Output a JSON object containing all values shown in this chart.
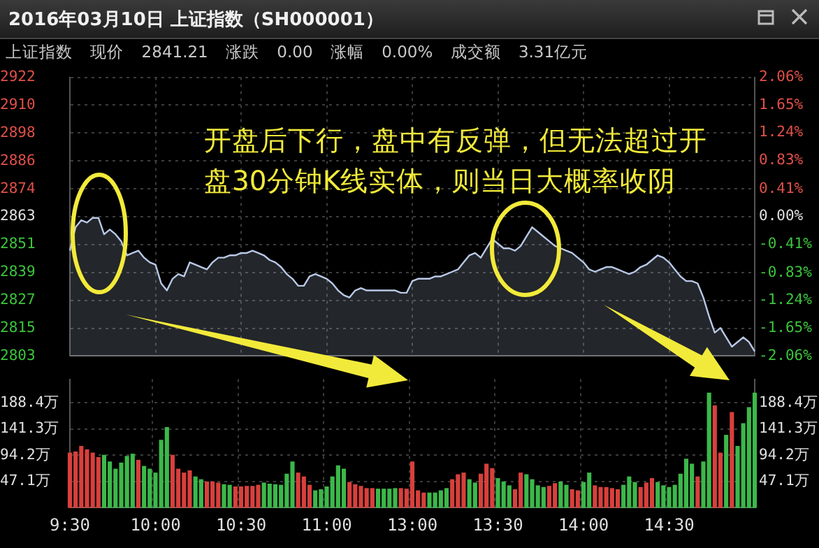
{
  "chart_data": [
    {
      "type": "area",
      "title": "2016年03月10日 上证指数（SH000001）",
      "subtitle": "上证指数 现价 2841.21 涨跌 0.00 涨幅 0.00% 成交额 3.31亿元",
      "annotations": [
        "开盘后下行，盘中有反弹，但无法超过开盘30分钟K线实体，则当日大概率收阴"
      ],
      "categories": [
        null,
        null,
        null,
        null,
        null,
        null,
        null,
        null,
        null,
        null,
        null,
        null,
        null,
        null,
        null,
        null,
        null,
        null,
        null,
        null,
        null,
        null,
        null,
        null,
        null,
        null,
        null,
        null,
        null,
        null,
        null,
        null,
        null,
        null,
        null,
        null,
        null,
        null,
        null,
        null,
        null,
        null,
        null,
        null,
        null,
        null,
        null,
        null,
        null,
        null,
        null,
        null,
        null,
        null,
        null,
        null,
        null,
        null,
        null,
        null,
        null,
        null,
        null,
        null,
        null,
        null,
        null,
        null,
        null,
        null,
        null,
        null,
        null,
        null,
        null,
        null,
        null,
        null,
        null,
        null,
        null,
        null,
        null,
        null,
        null,
        null,
        null,
        null,
        null,
        null,
        null,
        null,
        null,
        null,
        null,
        null,
        null,
        null,
        null,
        null,
        null,
        null,
        null,
        null,
        null,
        null,
        null,
        null,
        null,
        null,
        null,
        null,
        null,
        null,
        null,
        null,
        null,
        null,
        null,
        null,
        null
      ],
      "series": [
        {
          "color": "#b8c8e6",
          "values": [
            2848,
            2858,
            2861,
            2860,
            2862,
            2862,
            2855,
            2857,
            2855,
            2852,
            2846,
            2847,
            2848,
            2845,
            2843,
            2842,
            2834,
            2831,
            2836,
            2838,
            2837,
            2843,
            2842,
            2841,
            2840,
            2843,
            2845,
            2845,
            2846,
            2846,
            2847,
            2847,
            2848,
            2847,
            2846,
            2844,
            2843,
            2841,
            2838,
            2836,
            2833,
            2833,
            2837,
            2838,
            2837,
            2836,
            2834,
            2831,
            2829,
            2828,
            2831,
            2832,
            2831,
            2831,
            2831,
            2831,
            2831,
            2831,
            2830,
            2830,
            2835,
            2836,
            2836,
            2836,
            2837,
            2837,
            2838,
            2839,
            2840,
            2843,
            2846,
            2847,
            2845,
            2849,
            2853,
            2851,
            2849,
            2849,
            2848,
            2850,
            2854,
            2858,
            2856,
            2854,
            2852,
            2850,
            2849,
            2848,
            2847,
            2845,
            2843,
            2840,
            2839,
            2840,
            2841,
            2841,
            2840,
            2839,
            2838,
            2839,
            2841,
            2842,
            2844,
            2846,
            2845,
            2843,
            2840,
            2837,
            2835,
            2835,
            2834,
            2828,
            2820,
            2813,
            2815,
            2811,
            2807,
            2809,
            2811,
            2809,
            2805
          ]
        }
      ],
      "ylim": [
        2803,
        2922
      ],
      "yticks": [
        {
          "value": 2803,
          "label": "2803"
        },
        {
          "value": 2814.9,
          "label": "2815"
        },
        {
          "value": 2826.8,
          "label": "2827"
        },
        {
          "value": 2838.7,
          "label": "2839"
        },
        {
          "value": 2850.6,
          "label": "2851"
        },
        {
          "value": 2862.5,
          "label": "2863"
        },
        {
          "value": 2874.4,
          "label": "2874"
        },
        {
          "value": 2886.3,
          "label": "2886"
        },
        {
          "value": 2898.2,
          "label": "2898"
        },
        {
          "value": 2910.1,
          "label": "2910"
        },
        {
          "value": 2922,
          "label": "2922"
        }
      ],
      "y2lim": [
        -2.06,
        2.06
      ],
      "y2ticks": [
        {
          "value": -2.06,
          "label": "-2.06%"
        },
        {
          "value": -1.65,
          "label": "-1.65%"
        },
        {
          "value": -1.24,
          "label": "-1.24%"
        },
        {
          "value": -0.83,
          "label": "-0.83%"
        },
        {
          "value": -0.41,
          "label": "-0.41%"
        },
        {
          "value": 0,
          "label": "0.00%"
        },
        {
          "value": 0.41,
          "label": "0.41%"
        },
        {
          "value": 0.83,
          "label": "0.83%"
        },
        {
          "value": 1.24,
          "label": "1.24%"
        },
        {
          "value": 1.65,
          "label": "1.65%"
        },
        {
          "value": 2.06,
          "label": "2.06%"
        }
      ],
      "grid": true,
      "tick_labels": "y"
    },
    {
      "type": "bar",
      "categories": [
        "9:30",
        null,
        null,
        null,
        null,
        null,
        null,
        null,
        null,
        null,
        null,
        null,
        null,
        null,
        null,
        "10:00",
        null,
        null,
        null,
        null,
        null,
        null,
        null,
        null,
        null,
        null,
        null,
        null,
        null,
        null,
        "10:30",
        null,
        null,
        null,
        null,
        null,
        null,
        null,
        null,
        null,
        null,
        null,
        null,
        null,
        null,
        "11:00",
        null,
        null,
        null,
        null,
        null,
        null,
        null,
        null,
        null,
        null,
        null,
        null,
        null,
        null,
        "13:00",
        null,
        null,
        null,
        null,
        null,
        null,
        null,
        null,
        null,
        null,
        null,
        null,
        null,
        null,
        "13:30",
        null,
        null,
        null,
        null,
        null,
        null,
        null,
        null,
        null,
        null,
        null,
        null,
        null,
        null,
        "14:00",
        null,
        null,
        null,
        null,
        null,
        null,
        null,
        null,
        null,
        null,
        null,
        null,
        null,
        null,
        "14:30",
        null,
        null,
        null,
        null,
        null,
        null,
        null,
        null,
        null,
        null,
        null,
        null,
        null,
        null,
        null
      ],
      "series": [
        {
          "values": [
            98,
            100,
            110,
            104,
            98,
            90,
            94,
            82,
            69,
            80,
            92,
            96,
            85,
            74,
            69,
            62,
            121,
            144,
            94,
            69,
            62,
            66,
            55,
            50,
            46,
            46,
            44,
            41,
            40,
            37,
            37,
            38,
            38,
            40,
            44,
            42,
            41,
            40,
            60,
            82,
            62,
            55,
            40,
            30,
            32,
            37,
            55,
            75,
            69,
            45,
            41,
            38,
            34,
            34,
            33,
            33,
            33,
            34,
            34,
            33,
            82,
            30,
            26,
            26,
            26,
            30,
            34,
            50,
            59,
            62,
            50,
            44,
            60,
            78,
            70,
            52,
            46,
            39,
            32,
            62,
            59,
            50,
            39,
            36,
            38,
            43,
            46,
            40,
            32,
            30,
            45,
            62,
            39,
            36,
            36,
            34,
            32,
            40,
            55,
            45,
            36,
            44,
            52,
            45,
            39,
            36,
            40,
            60,
            87,
            78,
            55,
            82,
            206,
            183,
            98,
            130,
            171,
            110,
            151,
            180,
            206
          ],
          "colors": [
            "#d8403c",
            "#d8403c",
            "#d8403c",
            "#d8403c",
            "#d8403c",
            "#d8403c",
            "#3cb84a",
            "#3cb84a",
            "#3cb84a",
            "#3cb84a",
            "#3cb84a",
            "#3cb84a",
            "#d8403c",
            "#3cb84a",
            "#3cb84a",
            "#3cb84a",
            "#3cb84a",
            "#3cb84a",
            "#d8403c",
            "#d8403c",
            "#d8403c",
            "#d8403c",
            "#3cb84a",
            "#3cb84a",
            "#d8403c",
            "#d8403c",
            "#d8403c",
            "#3cb84a",
            "#3cb84a",
            "#d8403c",
            "#d8403c",
            "#d8403c",
            "#d8403c",
            "#d8403c",
            "#3cb84a",
            "#3cb84a",
            "#3cb84a",
            "#3cb84a",
            "#3cb84a",
            "#3cb84a",
            "#d8403c",
            "#d8403c",
            "#d8403c",
            "#3cb84a",
            "#3cb84a",
            "#3cb84a",
            "#3cb84a",
            "#3cb84a",
            "#3cb84a",
            "#d8403c",
            "#d8403c",
            "#d8403c",
            "#d8403c",
            "#d8403c",
            "#3cb84a",
            "#3cb84a",
            "#3cb84a",
            "#3cb84a",
            "#d8403c",
            "#d8403c",
            "#d8403c",
            "#d8403c",
            "#d8403c",
            "#3cb84a",
            "#3cb84a",
            "#3cb84a",
            "#3cb84a",
            "#d8403c",
            "#d8403c",
            "#d8403c",
            "#3cb84a",
            "#3cb84a",
            "#d8403c",
            "#d8403c",
            "#d8403c",
            "#3cb84a",
            "#3cb84a",
            "#3cb84a",
            "#d8403c",
            "#d8403c",
            "#3cb84a",
            "#3cb84a",
            "#3cb84a",
            "#3cb84a",
            "#d8403c",
            "#d8403c",
            "#3cb84a",
            "#3cb84a",
            "#d8403c",
            "#d8403c",
            "#3cb84a",
            "#3cb84a",
            "#d8403c",
            "#d8403c",
            "#d8403c",
            "#d8403c",
            "#d8403c",
            "#3cb84a",
            "#3cb84a",
            "#3cb84a",
            "#d8403c",
            "#d8403c",
            "#d8403c",
            "#3cb84a",
            "#3cb84a",
            "#3cb84a",
            "#3cb84a",
            "#3cb84a",
            "#3cb84a",
            "#3cb84a",
            "#d8403c",
            "#3cb84a",
            "#3cb84a",
            "#d8403c",
            "#d8403c",
            "#3cb84a",
            "#d8403c",
            "#3cb84a",
            "#3cb84a",
            "#3cb84a",
            "#3cb84a"
          ]
        }
      ],
      "ylim": [
        0,
        231
      ],
      "yticks": [
        {
          "value": 47.1,
          "label": "47.1万"
        },
        {
          "value": 94.2,
          "label": "94.2万"
        },
        {
          "value": 141.3,
          "label": "141.3万"
        },
        {
          "value": 188.4,
          "label": "188.4万"
        }
      ],
      "y2lim": [
        0,
        231
      ],
      "y2ticks": [
        {
          "value": 47.1,
          "label": "47.1万"
        },
        {
          "value": 94.2,
          "label": "94.2万"
        },
        {
          "value": 141.3,
          "label": "141.3万"
        },
        {
          "value": 188.4,
          "label": "188.4万"
        }
      ],
      "grid": true
    }
  ]
}
